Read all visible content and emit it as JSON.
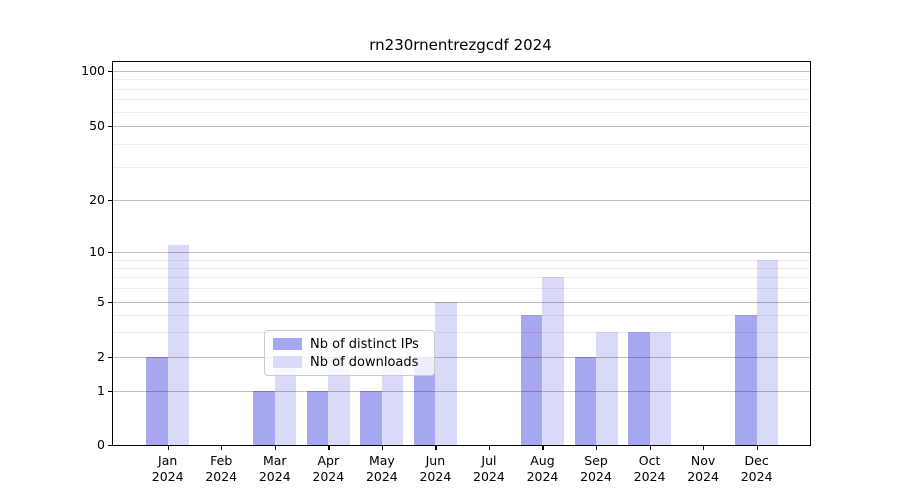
{
  "chart_data": {
    "type": "bar",
    "title": "rn230rnentrezgcdf 2024",
    "categories": [
      "Jan",
      "Feb",
      "Mar",
      "Apr",
      "May",
      "Jun",
      "Jul",
      "Aug",
      "Sep",
      "Oct",
      "Nov",
      "Dec"
    ],
    "year_label": "2024",
    "series": [
      {
        "name": "Nb of distinct IPs",
        "color": "#a7a7ef",
        "values": [
          2,
          0,
          1,
          1,
          1,
          2,
          0,
          4,
          2,
          3,
          0,
          4
        ]
      },
      {
        "name": "Nb of downloads",
        "color": "#d9d9f8",
        "values": [
          11,
          0,
          2,
          2,
          2,
          5,
          0,
          7,
          3,
          3,
          0,
          9
        ]
      }
    ],
    "yticks": [
      0,
      1,
      2,
      5,
      10,
      20,
      50,
      100
    ],
    "minor_gridlines": [
      3,
      4,
      6,
      7,
      8,
      9,
      30,
      40,
      60,
      70,
      80,
      90
    ],
    "scale": "symlog",
    "ylim": [
      0,
      115
    ],
    "grid": true,
    "legend_position": "lower center"
  }
}
